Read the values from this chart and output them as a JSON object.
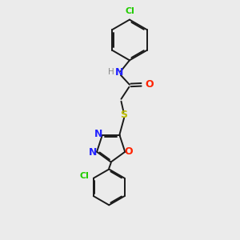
{
  "background_color": "#ebebeb",
  "bond_color": "#1a1a1a",
  "atom_colors": {
    "Cl": "#22cc00",
    "N": "#2222ff",
    "H": "#888888",
    "O": "#ff2200",
    "S": "#bbbb00"
  },
  "figsize": [
    3.0,
    3.0
  ],
  "dpi": 100
}
